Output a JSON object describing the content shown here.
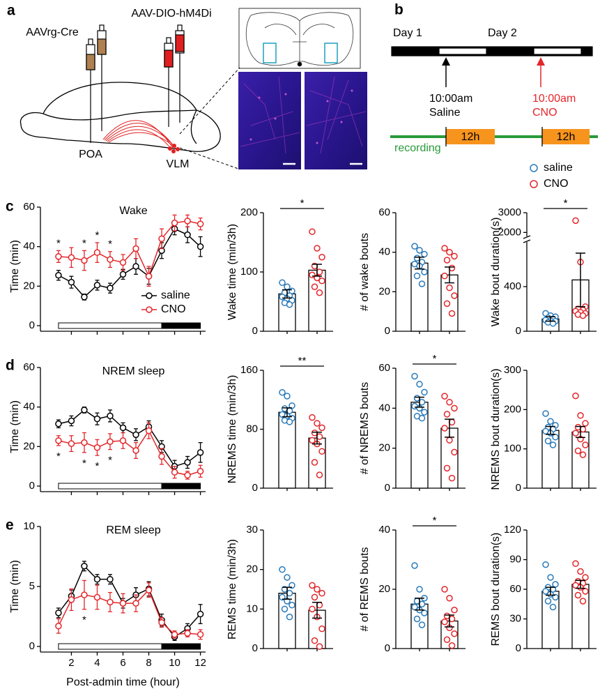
{
  "panel_labels": [
    "a",
    "b",
    "c",
    "d",
    "e"
  ],
  "diagram": {
    "virus_1": "AAVrg-Cre",
    "virus_2": "AAV-DIO-hM4Di",
    "region_1": "POA",
    "region_2": "VLM"
  },
  "timeline": {
    "day_1": "Day 1",
    "day_2": "Day 2",
    "time_1": "10:00am",
    "treatment_1": "Saline",
    "time_2": "10:00am",
    "treatment_2": "CNO",
    "recording": "recording",
    "block_1": "12h",
    "block_2": "12h"
  },
  "group_legend": [
    {
      "name": "saline",
      "color": "#2a7ab9"
    },
    {
      "name": "CNO",
      "color": "#e3262a"
    }
  ],
  "chart_data": [
    {
      "type": "line",
      "title": "Wake",
      "ylabel": "Time (min)",
      "x": [
        1,
        2,
        3,
        4,
        5,
        6,
        7,
        8,
        9,
        10,
        11,
        12
      ],
      "xlim": [
        -0.4,
        12.4
      ],
      "xticks": [
        2,
        4,
        6,
        8,
        10,
        12
      ],
      "xtick_labels": false,
      "ylim": [
        0,
        60
      ],
      "yticks": [
        0,
        20,
        40,
        60
      ],
      "series": [
        {
          "name": "saline",
          "color": "#000000",
          "values": [
            25.5,
            22,
            14.5,
            20.5,
            19,
            26,
            30,
            25,
            38,
            49,
            46,
            40
          ],
          "errors": [
            2.5,
            3,
            1.5,
            2.5,
            2.5,
            2.5,
            4,
            4,
            4,
            3,
            4,
            5
          ]
        },
        {
          "name": "CNO",
          "color": "#e3262a",
          "values": [
            35,
            34.5,
            33,
            37,
            33.5,
            32,
            39,
            25,
            44,
            52,
            53,
            51.5
          ],
          "errors": [
            3,
            5,
            5,
            5,
            4,
            4,
            5,
            5,
            5,
            4,
            3,
            3
          ]
        }
      ],
      "legend": "lower right",
      "light_dark": [
        {
          "start": 1,
          "end": 9,
          "color": "#ffffff"
        },
        {
          "start": 9,
          "end": 12,
          "color": "#000000"
        }
      ],
      "annotations": [
        {
          "x": 1,
          "text": "*"
        },
        {
          "x": 3,
          "text": "*"
        },
        {
          "x": 4,
          "text": "*"
        },
        {
          "x": 5,
          "text": "*"
        }
      ],
      "annotation_side": "above"
    },
    {
      "type": "bar",
      "ylabel": "Wake time (min/3h)",
      "values": [
        63,
        103
      ],
      "errors": [
        7,
        10
      ],
      "ylim": [
        0,
        200
      ],
      "yticks": [
        0,
        100,
        200
      ],
      "point_colors": [
        "#2a7ab9",
        "#e3262a"
      ],
      "points": [
        [
          82,
          75,
          68,
          65,
          60,
          58,
          55,
          52,
          48,
          45
        ],
        [
          168,
          140,
          125,
          110,
          100,
          95,
          90,
          85,
          75,
          65
        ]
      ],
      "significance": "*"
    },
    {
      "type": "bar",
      "ylabel": "# of wake bouts",
      "values": [
        34.5,
        28.5
      ],
      "errors": [
        3,
        4
      ],
      "ylim": [
        0,
        60
      ],
      "yticks": [
        0,
        20,
        40,
        60
      ],
      "point_colors": [
        "#2a7ab9",
        "#e3262a"
      ],
      "points": [
        [
          43,
          41,
          39,
          37,
          35,
          34,
          33,
          30,
          28,
          24
        ],
        [
          42,
          40,
          38,
          36,
          32,
          28,
          22,
          18,
          14,
          9
        ]
      ]
    },
    {
      "type": "bar",
      "ylabel": "Wake bout duration(s)",
      "values": [
        110,
        460
      ],
      "errors": [
        20,
        240
      ],
      "ylim": [
        0,
        3000
      ],
      "yticks": [
        0,
        400,
        2000,
        3000
      ],
      "axis_break": [
        800,
        1800
      ],
      "point_colors": [
        "#2a7ab9",
        "#e3262a"
      ],
      "points": [
        [
          160,
          140,
          130,
          120,
          110,
          100,
          95,
          90,
          80,
          70
        ],
        [
          2600,
          620,
          220,
          200,
          190,
          180,
          170,
          160,
          150,
          140
        ]
      ],
      "significance": "*"
    },
    {
      "type": "line",
      "title": "NREM sleep",
      "ylabel": "Time (min)",
      "x": [
        1,
        2,
        3,
        4,
        5,
        6,
        7,
        8,
        9,
        10,
        11,
        12
      ],
      "xlim": [
        -0.4,
        12.4
      ],
      "xticks": [
        2,
        4,
        6,
        8,
        10,
        12
      ],
      "xtick_labels": false,
      "ylim": [
        0,
        60
      ],
      "yticks": [
        0,
        20,
        40,
        60
      ],
      "series": [
        {
          "color": "#000000",
          "values": [
            31.5,
            33,
            38.5,
            34,
            35.5,
            29.5,
            26,
            30,
            20,
            10,
            12,
            17
          ],
          "errors": [
            2,
            2.5,
            1.5,
            3,
            3,
            2.5,
            3,
            3,
            3,
            3,
            3,
            5
          ]
        },
        {
          "color": "#e3262a",
          "values": [
            23,
            21.5,
            22,
            19.5,
            22.5,
            23,
            18,
            28,
            15,
            7,
            5.5,
            7.5
          ],
          "errors": [
            2.5,
            4,
            5,
            4,
            4,
            4,
            4,
            4,
            4,
            3,
            2,
            3
          ]
        }
      ],
      "light_dark": [
        {
          "start": 1,
          "end": 9,
          "color": "#ffffff"
        },
        {
          "start": 9,
          "end": 12,
          "color": "#000000"
        }
      ],
      "annotations": [
        {
          "x": 1,
          "text": "*"
        },
        {
          "x": 3,
          "text": "*"
        },
        {
          "x": 4,
          "text": "*"
        },
        {
          "x": 5,
          "text": "*"
        }
      ],
      "annotation_side": "below"
    },
    {
      "type": "bar",
      "ylabel": "NREMS time (min/3h)",
      "values": [
        103,
        68
      ],
      "errors": [
        6,
        8
      ],
      "ylim": [
        0,
        160
      ],
      "yticks": [
        0,
        80,
        160
      ],
      "point_colors": [
        "#2a7ab9",
        "#e3262a"
      ],
      "points": [
        [
          130,
          125,
          112,
          108,
          105,
          100,
          98,
          95,
          92,
          90
        ],
        [
          96,
          88,
          82,
          75,
          70,
          65,
          60,
          50,
          35,
          18
        ]
      ],
      "significance": "**"
    },
    {
      "type": "bar",
      "ylabel": "# of NREMS bouts",
      "values": [
        43,
        30
      ],
      "errors": [
        2.5,
        4.5
      ],
      "ylim": [
        0,
        60
      ],
      "yticks": [
        0,
        20,
        40,
        60
      ],
      "point_colors": [
        "#2a7ab9",
        "#e3262a"
      ],
      "points": [
        [
          56,
          52,
          48,
          45,
          43,
          41,
          40,
          38,
          36,
          35
        ],
        [
          46,
          43,
          40,
          37,
          33,
          30,
          24,
          18,
          10,
          5
        ]
      ],
      "significance": "*"
    },
    {
      "type": "bar",
      "ylabel": "NREMS bout duration(s)",
      "values": [
        147,
        143
      ],
      "errors": [
        10,
        14
      ],
      "ylim": [
        0,
        300
      ],
      "yticks": [
        0,
        100,
        200,
        300
      ],
      "point_colors": [
        "#2a7ab9",
        "#e3262a"
      ],
      "points": [
        [
          190,
          170,
          160,
          155,
          150,
          145,
          140,
          130,
          120,
          110
        ],
        [
          235,
          185,
          165,
          155,
          150,
          140,
          125,
          110,
          95,
          85
        ]
      ]
    },
    {
      "type": "line",
      "title": "REM sleep",
      "ylabel": "Time (min)",
      "xlabel": "Post-admin time (hour)",
      "x": [
        1,
        2,
        3,
        4,
        5,
        6,
        7,
        8,
        9,
        10,
        11,
        12
      ],
      "xlim": [
        -0.4,
        12.4
      ],
      "xticks": [
        2,
        4,
        6,
        8,
        10,
        12
      ],
      "xtick_labels": true,
      "ylim": [
        0,
        10
      ],
      "yticks": [
        0,
        5,
        10
      ],
      "series": [
        {
          "color": "#000000",
          "values": [
            2.8,
            4.2,
            6.7,
            5.6,
            5.6,
            3.6,
            4.3,
            4.8,
            2.2,
            0.8,
            1.5,
            2.7
          ],
          "errors": [
            0.4,
            0.5,
            0.4,
            0.4,
            0.4,
            0.4,
            0.6,
            0.6,
            0.5,
            0.3,
            0.4,
            0.8
          ]
        },
        {
          "color": "#e3262a",
          "values": [
            1.7,
            3.9,
            4.3,
            4.1,
            3.7,
            3.6,
            3.6,
            4.7,
            2.0,
            1.0,
            1.1,
            1.0
          ],
          "errors": [
            0.6,
            0.9,
            1.2,
            1,
            0.8,
            0.8,
            0.7,
            0.6,
            0.4,
            0.3,
            0.3,
            0.4
          ]
        }
      ],
      "light_dark": [
        {
          "start": 1,
          "end": 9,
          "color": "#ffffff"
        },
        {
          "start": 9,
          "end": 12,
          "color": "#000000"
        }
      ],
      "annotations": [
        {
          "x": 3,
          "text": "*"
        }
      ],
      "annotation_side": "below"
    },
    {
      "type": "bar",
      "ylabel": "REMS time (min/3h)",
      "values": [
        14,
        9.7
      ],
      "errors": [
        1.5,
        2
      ],
      "ylim": [
        0,
        30
      ],
      "yticks": [
        0,
        10,
        20,
        30
      ],
      "point_colors": [
        "#2a7ab9",
        "#e3262a"
      ],
      "points": [
        [
          20,
          18,
          16,
          15,
          14,
          13,
          12,
          11,
          10,
          8
        ],
        [
          16,
          15,
          14,
          13,
          11,
          10,
          8,
          5,
          2,
          0.5
        ]
      ]
    },
    {
      "type": "bar",
      "ylabel": "# of REMS bouts",
      "values": [
        15,
        9.3
      ],
      "errors": [
        2,
        2
      ],
      "ylim": [
        0,
        40
      ],
      "yticks": [
        0,
        20,
        40
      ],
      "point_colors": [
        "#2a7ab9",
        "#e3262a"
      ],
      "points": [
        [
          28,
          20,
          17,
          16,
          15,
          14,
          13,
          12,
          10,
          8
        ],
        [
          20,
          17,
          13,
          11,
          10,
          9,
          7,
          5,
          3,
          1
        ]
      ],
      "significance": "*"
    },
    {
      "type": "bar",
      "ylabel": "REMS bout duration(s)",
      "values": [
        58,
        65
      ],
      "errors": [
        4,
        4
      ],
      "ylim": [
        0,
        120
      ],
      "yticks": [
        0,
        30,
        60,
        90,
        120
      ],
      "point_colors": [
        "#2a7ab9",
        "#e3262a"
      ],
      "points": [
        [
          85,
          72,
          65,
          62,
          60,
          58,
          55,
          52,
          48,
          42
        ],
        [
          86,
          78,
          72,
          68,
          66,
          64,
          62,
          58,
          54,
          48
        ]
      ]
    }
  ]
}
